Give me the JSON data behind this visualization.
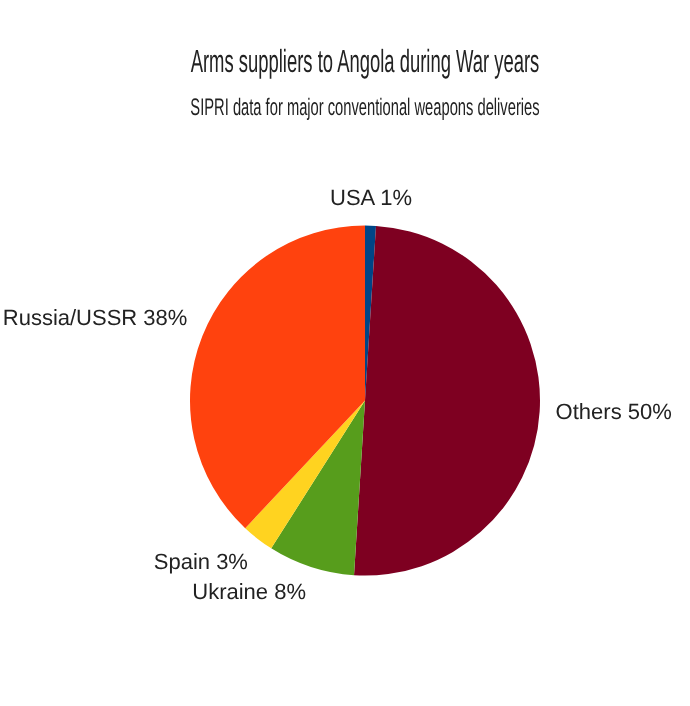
{
  "chart_data": {
    "type": "pie",
    "title": "Arms suppliers to Angola during War years",
    "subtitle": "SIPRI data for major conventional weapons deliveries",
    "categories": [
      "USA",
      "Others",
      "Ukraine",
      "Spain",
      "Russia/USSR"
    ],
    "values": [
      1,
      50,
      8,
      3,
      38
    ],
    "value_labels": [
      "1%",
      "50%",
      "8%",
      "3%",
      "38%"
    ],
    "colors": [
      "#004586",
      "#7e0021",
      "#579d1c",
      "#ffd320",
      "#ff420e"
    ],
    "legend": false
  }
}
